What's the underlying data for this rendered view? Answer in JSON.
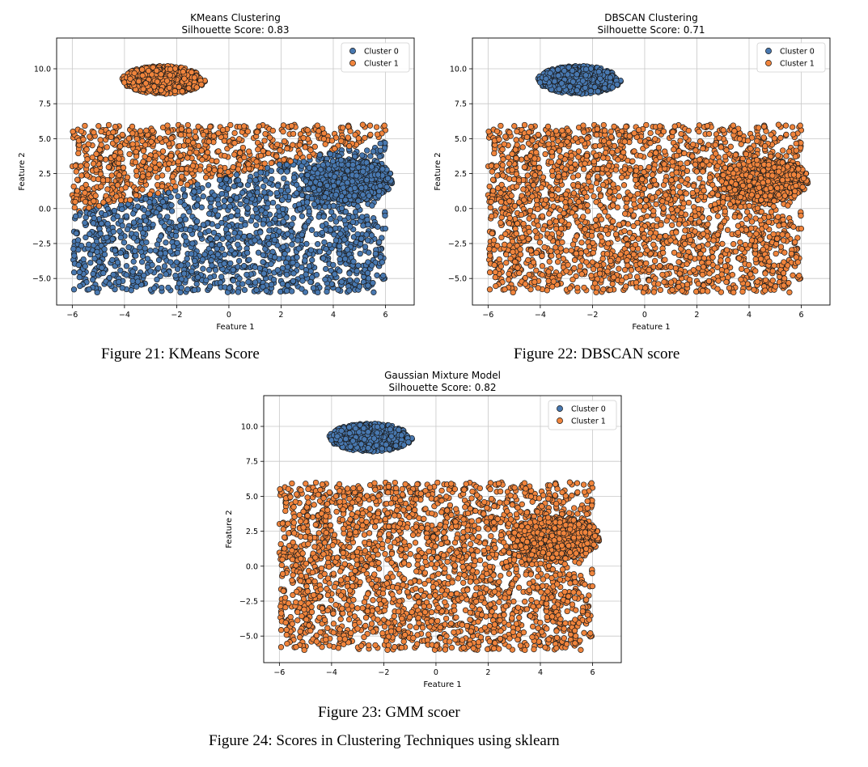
{
  "chart_data": [
    {
      "type": "scatter",
      "title": "KMeans Clustering",
      "subtitle": "Silhouette Score: 0.83",
      "xlabel": "Feature 1",
      "ylabel": "Feature 2",
      "xlim": [
        -6.6,
        7.1
      ],
      "ylim": [
        -6.9,
        12.2
      ],
      "xticks": [
        -6,
        -4,
        -2,
        0,
        2,
        4,
        6
      ],
      "yticks": [
        -5.0,
        -2.5,
        0.0,
        2.5,
        5.0,
        7.5,
        10.0
      ],
      "grid": true,
      "legend": "top-right",
      "series": [
        {
          "name": "Cluster 0",
          "color": "#4878b0"
        },
        {
          "name": "Cluster 1",
          "color": "#f0843c"
        }
      ],
      "data_regions": [
        {
          "shape": "ellipse",
          "center": [
            -2.5,
            9.2
          ],
          "radius": [
            1.6,
            1.0
          ],
          "points": 650,
          "label": "Cluster 1"
        },
        {
          "shape": "rect",
          "x": [
            -6,
            6
          ],
          "y": [
            -6,
            6
          ],
          "points": 2400,
          "label_rule": "upper-left wedge = Cluster 1, rest = Cluster 0"
        },
        {
          "shape": "ellipse",
          "center": [
            4.6,
            2.0
          ],
          "radius": [
            1.7,
            1.5
          ],
          "points": 600,
          "label": "Cluster 0"
        }
      ]
    },
    {
      "type": "scatter",
      "title": "DBSCAN Clustering",
      "subtitle": "Silhouette Score: 0.71",
      "xlabel": "Feature 1",
      "ylabel": "Feature 2",
      "xlim": [
        -6.6,
        7.1
      ],
      "ylim": [
        -6.9,
        12.2
      ],
      "xticks": [
        -6,
        -4,
        -2,
        0,
        2,
        4,
        6
      ],
      "yticks": [
        -5.0,
        -2.5,
        0.0,
        2.5,
        5.0,
        7.5,
        10.0
      ],
      "grid": true,
      "legend": "top-right",
      "series": [
        {
          "name": "Cluster 0",
          "color": "#4878b0"
        },
        {
          "name": "Cluster 1",
          "color": "#f0843c"
        }
      ],
      "data_regions": [
        {
          "shape": "ellipse",
          "center": [
            -2.5,
            9.2
          ],
          "radius": [
            1.6,
            1.0
          ],
          "points": 650,
          "label": "Cluster 0"
        },
        {
          "shape": "rect",
          "x": [
            -6,
            6
          ],
          "y": [
            -6,
            6
          ],
          "points": 2400,
          "label": "Cluster 1"
        },
        {
          "shape": "ellipse",
          "center": [
            4.6,
            2.0
          ],
          "radius": [
            1.7,
            1.5
          ],
          "points": 600,
          "label": "Cluster 1"
        }
      ]
    },
    {
      "type": "scatter",
      "title": "Gaussian Mixture Model",
      "subtitle": "Silhouette Score: 0.82",
      "xlabel": "Feature 1",
      "ylabel": "Feature 2",
      "xlim": [
        -6.6,
        7.1
      ],
      "ylim": [
        -6.9,
        12.2
      ],
      "xticks": [
        -6,
        -4,
        -2,
        0,
        2,
        4,
        6
      ],
      "yticks": [
        -5.0,
        -2.5,
        0.0,
        2.5,
        5.0,
        7.5,
        10.0
      ],
      "grid": true,
      "legend": "top-right",
      "series": [
        {
          "name": "Cluster 0",
          "color": "#4878b0"
        },
        {
          "name": "Cluster 1",
          "color": "#f0843c"
        }
      ],
      "data_regions": [
        {
          "shape": "ellipse",
          "center": [
            -2.5,
            9.2
          ],
          "radius": [
            1.6,
            1.0
          ],
          "points": 650,
          "label": "Cluster 0"
        },
        {
          "shape": "rect",
          "x": [
            -6,
            6
          ],
          "y": [
            -6,
            6
          ],
          "points": 2400,
          "label": "Cluster 1"
        },
        {
          "shape": "ellipse",
          "center": [
            4.6,
            2.0
          ],
          "radius": [
            1.7,
            1.5
          ],
          "points": 600,
          "label": "Cluster 1"
        }
      ]
    }
  ],
  "captions": {
    "fig21": "Figure 21: KMeans Score",
    "fig22": "Figure 22: DBSCAN score",
    "fig23": "Figure 23: GMM scoer",
    "fig24": "Figure 24: Scores in Clustering Techniques using sklearn"
  }
}
